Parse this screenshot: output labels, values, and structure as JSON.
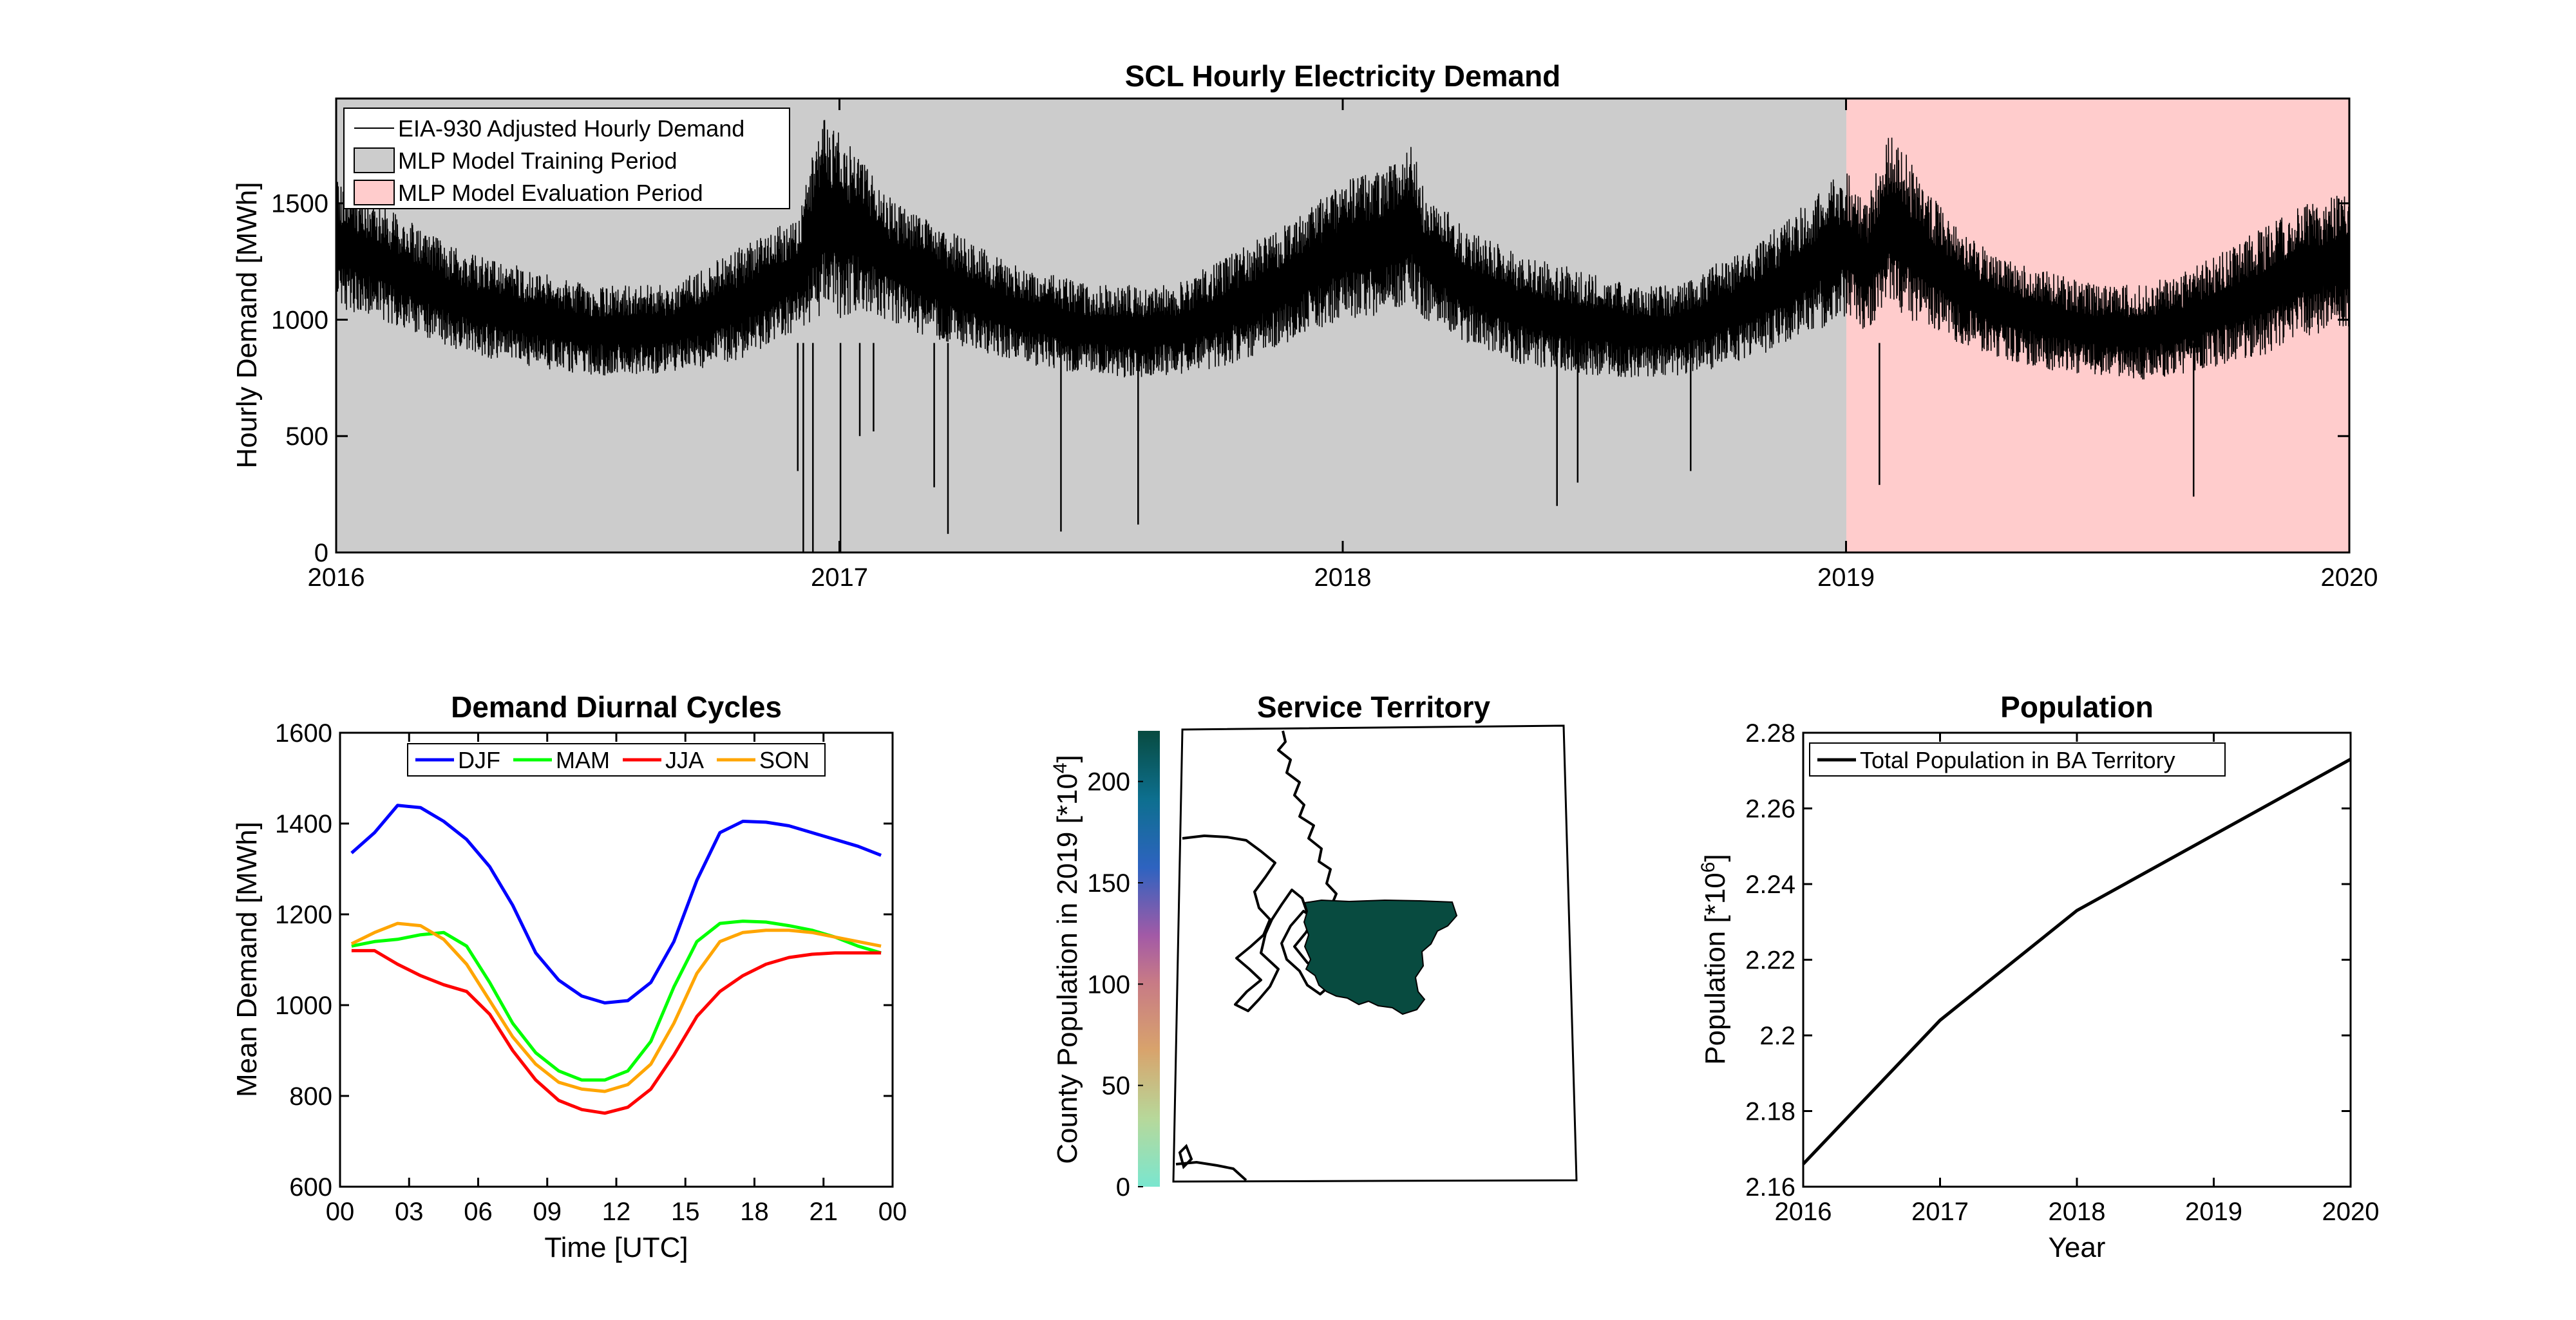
{
  "chart_data": [
    {
      "type": "line",
      "title": "SCL Hourly Electricity Demand",
      "xlabel": "",
      "ylabel": "Hourly Demand [MWh]",
      "xlim": [
        "2016-01-01",
        "2020-01-01"
      ],
      "ylim": [
        0,
        1950
      ],
      "x_ticks": [
        "2016",
        "2017",
        "2018",
        "2019",
        "2020"
      ],
      "y_ticks": [
        "0",
        "500",
        "1000",
        "1500"
      ],
      "legend": {
        "placement": "top-left",
        "entries": [
          "EIA-930 Adjusted Hourly Demand",
          "MLP Model Training Period",
          "MLP Model Evaluation Period"
        ]
      },
      "periods": [
        {
          "name": "MLP Model Training Period",
          "start": "2016-01-01",
          "end": "2019-01-01",
          "color": "#cccccc"
        },
        {
          "name": "MLP Model Evaluation Period",
          "start": "2019-01-01",
          "end": "2020-01-01",
          "color": "#ffcccc"
        }
      ],
      "series": [
        {
          "name": "EIA-930 Adjusted Hourly Demand",
          "color": "#000000",
          "weekly_envelope": {
            "x": [
              "2016-01-01",
              "2016-02-01",
              "2016-03-01",
              "2016-04-01",
              "2016-05-01",
              "2016-06-01",
              "2016-07-01",
              "2016-08-01",
              "2016-09-01",
              "2016-10-01",
              "2016-11-01",
              "2016-12-01",
              "2016-12-20",
              "2017-01-01",
              "2017-01-15",
              "2017-02-01",
              "2017-03-01",
              "2017-04-01",
              "2017-05-01",
              "2017-06-01",
              "2017-07-01",
              "2017-08-01",
              "2017-09-01",
              "2017-10-01",
              "2017-11-01",
              "2017-12-01",
              "2018-01-01",
              "2018-02-01",
              "2018-02-20",
              "2018-03-01",
              "2018-04-01",
              "2018-05-01",
              "2018-06-01",
              "2018-07-01",
              "2018-08-01",
              "2018-09-01",
              "2018-10-01",
              "2018-11-01",
              "2018-12-01",
              "2019-01-01",
              "2019-01-15",
              "2019-02-01",
              "2019-02-15",
              "2019-03-01",
              "2019-04-01",
              "2019-05-01",
              "2019-06-01",
              "2019-07-01",
              "2019-08-01",
              "2019-09-01",
              "2019-10-01",
              "2019-11-01",
              "2019-12-01",
              "2020-01-01"
            ],
            "low": [
              1050,
              1000,
              920,
              860,
              810,
              780,
              760,
              760,
              770,
              800,
              850,
              950,
              1000,
              1000,
              1050,
              1000,
              930,
              880,
              830,
              790,
              760,
              750,
              760,
              790,
              850,
              920,
              1000,
              1020,
              1050,
              1000,
              900,
              820,
              780,
              760,
              750,
              760,
              790,
              850,
              930,
              1000,
              950,
              1050,
              1000,
              950,
              880,
              820,
              780,
              760,
              740,
              760,
              800,
              850,
              930,
              970
            ],
            "high": [
              1600,
              1500,
              1400,
              1300,
              1250,
              1200,
              1150,
              1150,
              1150,
              1250,
              1350,
              1450,
              1900,
              1800,
              1700,
              1550,
              1450,
              1350,
              1250,
              1200,
              1150,
              1150,
              1150,
              1250,
              1350,
              1450,
              1600,
              1650,
              1750,
              1550,
              1400,
              1300,
              1250,
              1200,
              1150,
              1150,
              1250,
              1350,
              1500,
              1650,
              1500,
              1800,
              1700,
              1550,
              1350,
              1250,
              1200,
              1150,
              1150,
              1200,
              1300,
              1400,
              1500,
              1550
            ]
          },
          "dropouts": [
            {
              "x": "2016-12-01",
              "y": 350
            },
            {
              "x": "2016-12-05",
              "y": 0
            },
            {
              "x": "2016-12-12",
              "y": 0
            },
            {
              "x": "2017-01-01",
              "y": 0
            },
            {
              "x": "2017-01-15",
              "y": 500
            },
            {
              "x": "2017-01-25",
              "y": 520
            },
            {
              "x": "2017-03-10",
              "y": 280
            },
            {
              "x": "2017-03-20",
              "y": 80
            },
            {
              "x": "2017-06-10",
              "y": 90
            },
            {
              "x": "2017-08-05",
              "y": 120
            },
            {
              "x": "2018-06-05",
              "y": 200
            },
            {
              "x": "2018-06-20",
              "y": 300
            },
            {
              "x": "2018-09-10",
              "y": 350
            },
            {
              "x": "2019-01-25",
              "y": 290
            },
            {
              "x": "2019-09-10",
              "y": 240
            }
          ]
        }
      ]
    },
    {
      "type": "line",
      "title": "Demand Diurnal Cycles",
      "xlabel": "Time [UTC]",
      "ylabel": "Mean Demand [MWh]",
      "xlim": [
        0,
        24
      ],
      "ylim": [
        600,
        1600
      ],
      "x_ticks": [
        "00",
        "03",
        "06",
        "09",
        "12",
        "15",
        "18",
        "21",
        "00"
      ],
      "y_ticks": [
        "600",
        "800",
        "1000",
        "1200",
        "1400",
        "1600"
      ],
      "legend": {
        "placement": "top",
        "entries": [
          "DJF",
          "MAM",
          "JJA",
          "SON"
        ]
      },
      "x": [
        0.5,
        1.5,
        2.5,
        3.5,
        4.5,
        5.5,
        6.5,
        7.5,
        8.5,
        9.5,
        10.5,
        11.5,
        12.5,
        13.5,
        14.5,
        15.5,
        16.5,
        17.5,
        18.5,
        19.5,
        20.5,
        21.5,
        22.5,
        23.5
      ],
      "series": [
        {
          "name": "DJF",
          "color": "#0000ff",
          "values": [
            1335,
            1380,
            1440,
            1435,
            1405,
            1365,
            1305,
            1220,
            1115,
            1055,
            1020,
            1005,
            1010,
            1050,
            1140,
            1275,
            1380,
            1405,
            1403,
            1395,
            1380,
            1365,
            1350,
            1330
          ]
        },
        {
          "name": "MAM",
          "color": "#00ff00",
          "values": [
            1130,
            1140,
            1145,
            1155,
            1160,
            1130,
            1050,
            960,
            895,
            855,
            835,
            835,
            855,
            920,
            1040,
            1140,
            1180,
            1185,
            1183,
            1175,
            1165,
            1150,
            1130,
            1115
          ]
        },
        {
          "name": "JJA",
          "color": "#ff0000",
          "values": [
            1120,
            1120,
            1090,
            1065,
            1045,
            1030,
            980,
            900,
            835,
            790,
            770,
            762,
            775,
            815,
            890,
            975,
            1030,
            1065,
            1090,
            1105,
            1112,
            1115,
            1115,
            1115
          ]
        },
        {
          "name": "SON",
          "color": "#ffa500",
          "values": [
            1135,
            1160,
            1180,
            1175,
            1145,
            1090,
            1010,
            930,
            870,
            830,
            815,
            810,
            825,
            870,
            960,
            1070,
            1140,
            1160,
            1165,
            1165,
            1160,
            1150,
            1140,
            1130
          ]
        }
      ]
    },
    {
      "type": "heatmap",
      "title": "Service Territory",
      "colorbar_label": "County Population in 2019 [*10",
      "colorbar_label_sup": "4",
      "colorbar_label_end": "]",
      "colorbar_range": [
        0,
        225
      ],
      "colorbar_ticks": [
        "0",
        "50",
        "100",
        "150",
        "200"
      ],
      "territory_color": "#084b40",
      "territory_value": 225
    },
    {
      "type": "line",
      "title": "Population",
      "xlabel": "Year",
      "ylabel_base": "Population [*10",
      "ylabel_sup": "6",
      "ylabel_end": "]",
      "xlim": [
        2016,
        2020
      ],
      "ylim": [
        2.16,
        2.28
      ],
      "x_ticks": [
        "2016",
        "2017",
        "2018",
        "2019",
        "2020"
      ],
      "y_ticks": [
        "2.16",
        "2.18",
        "2.2",
        "2.22",
        "2.24",
        "2.26",
        "2.28"
      ],
      "legend": {
        "placement": "top-left",
        "entries": [
          "Total Population in BA Territory"
        ]
      },
      "series": [
        {
          "name": "Total Population in BA Territory",
          "color": "#000000",
          "x": [
            2016,
            2017,
            2018,
            2019,
            2020
          ],
          "values": [
            2.166,
            2.204,
            2.233,
            2.253,
            2.273
          ]
        }
      ]
    }
  ]
}
